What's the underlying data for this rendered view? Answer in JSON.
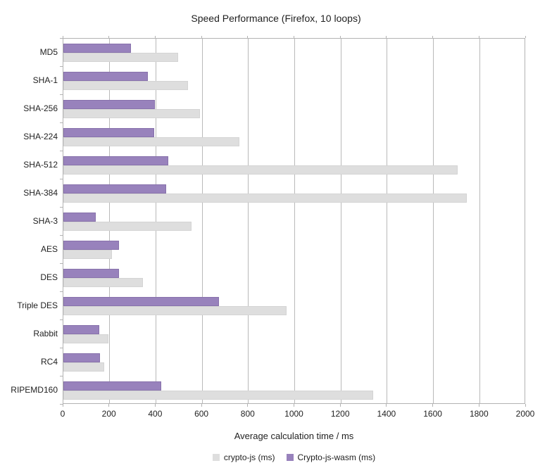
{
  "chart_data": {
    "type": "bar",
    "orientation": "horizontal",
    "title": "Speed Performance (Firefox, 10 loops)",
    "xlabel": "Average calculation time / ms",
    "ylabel": "",
    "categories": [
      "MD5",
      "SHA-1",
      "SHA-256",
      "SHA-224",
      "SHA-512",
      "SHA-384",
      "SHA-3",
      "AES",
      "DES",
      "Triple DES",
      "Rabbit",
      "RC4",
      "RIPEMD160"
    ],
    "series": [
      {
        "name": "crypto-js (ms)",
        "color": "#dedede",
        "border_color": "#d4d4d4",
        "values": [
          495,
          540,
          590,
          760,
          1705,
          1745,
          555,
          210,
          345,
          965,
          196,
          178,
          1340
        ]
      },
      {
        "name": "Crypto-js-wasm (ms)",
        "color": "#9882bc",
        "border_color": "#8872ac",
        "values": [
          292,
          365,
          397,
          394,
          455,
          443,
          140,
          241,
          241,
          672,
          154,
          158,
          424
        ]
      }
    ],
    "xlim": [
      0,
      2000
    ],
    "xticks": [
      0,
      200,
      400,
      600,
      800,
      1000,
      1200,
      1400,
      1600,
      1800,
      2000
    ],
    "grid": "vertical",
    "legend_position": "bottom",
    "colors": {
      "axis": "#b3b3b3",
      "gridline": "#b9b9b9",
      "text": "#1f1f1f",
      "background": "#ffffff"
    }
  }
}
